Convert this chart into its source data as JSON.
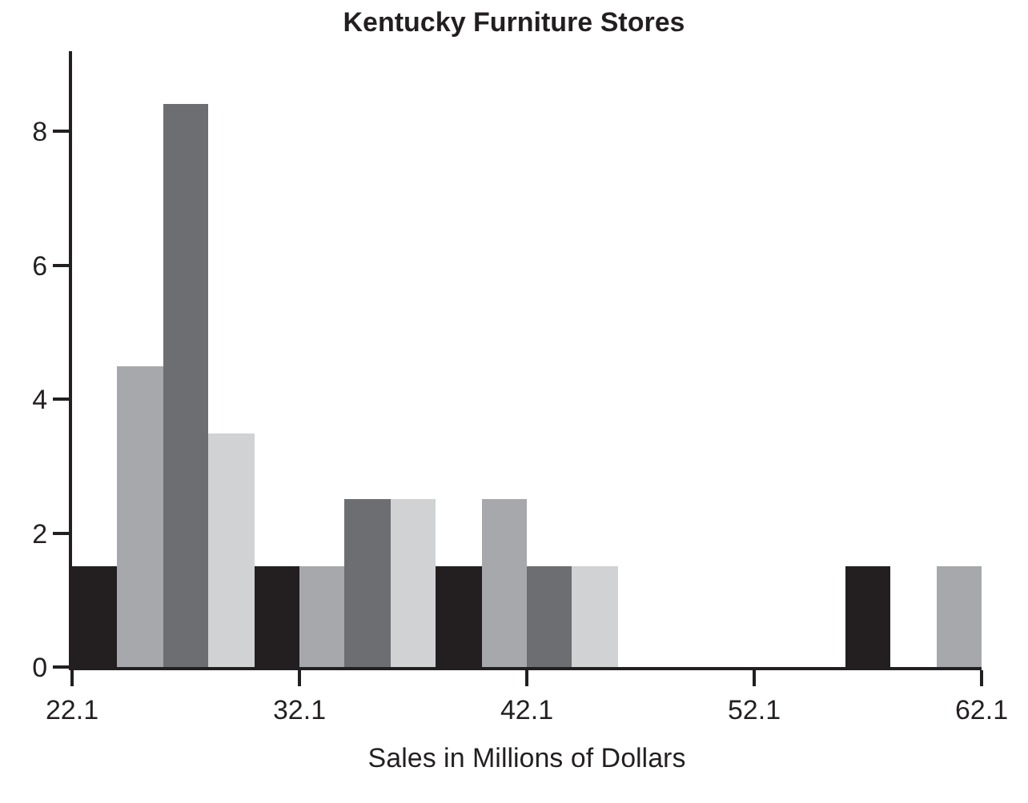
{
  "chart_data": {
    "type": "histogram",
    "title": "Kentucky Furniture Stores",
    "xlabel": "Sales in Millions of Dollars",
    "bins": [
      22.1,
      24.1,
      26.1,
      28.1,
      30.1,
      32.1,
      34.1,
      36.1,
      38.1,
      40.1,
      42.1,
      44.1,
      46.1,
      48.1,
      50.1,
      52.1,
      54.1,
      56.1,
      58.1,
      60.1,
      62.1
    ],
    "values": [
      1.5,
      4.5,
      8.4,
      3.5,
      1.5,
      1.5,
      2.5,
      2.5,
      1.5,
      2.5,
      1.5,
      1.5,
      0,
      0,
      0,
      0,
      0,
      1.5,
      0,
      1.5
    ],
    "colors": [
      "#231f20",
      "#a7a8ab",
      "#6d6e71",
      "#d1d2d4",
      "#231f20",
      "#a7a8ab",
      "#6d6e71",
      "#d1d2d4",
      "#231f20",
      "#a7a8ab",
      "#6d6e71",
      "#d1d2d4",
      "#231f20",
      "#a7a8ab",
      "#6d6e71",
      "#d1d2d4",
      "#6d6e71",
      "#231f20",
      "#d1d2d4",
      "#a7a8ab"
    ],
    "xlim": [
      22.1,
      62.1
    ],
    "xticks": [
      22.1,
      32.1,
      42.1,
      52.1,
      62.1
    ],
    "ylim": [
      0,
      9.2
    ],
    "yticks": [
      0,
      2,
      4,
      6,
      8
    ]
  }
}
